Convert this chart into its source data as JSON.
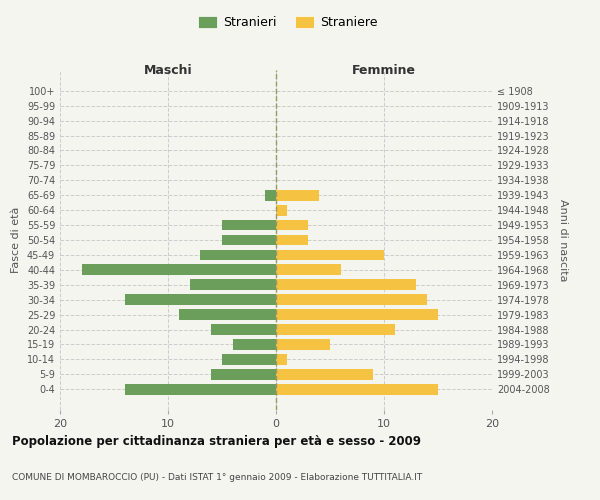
{
  "age_groups": [
    "100+",
    "95-99",
    "90-94",
    "85-89",
    "80-84",
    "75-79",
    "70-74",
    "65-69",
    "60-64",
    "55-59",
    "50-54",
    "45-49",
    "40-44",
    "35-39",
    "30-34",
    "25-29",
    "20-24",
    "15-19",
    "10-14",
    "5-9",
    "0-4"
  ],
  "birth_years": [
    "≤ 1908",
    "1909-1913",
    "1914-1918",
    "1919-1923",
    "1924-1928",
    "1929-1933",
    "1934-1938",
    "1939-1943",
    "1944-1948",
    "1949-1953",
    "1954-1958",
    "1959-1963",
    "1964-1968",
    "1969-1973",
    "1974-1978",
    "1979-1983",
    "1984-1988",
    "1989-1993",
    "1994-1998",
    "1999-2003",
    "2004-2008"
  ],
  "maschi": [
    0,
    0,
    0,
    0,
    0,
    0,
    0,
    1,
    0,
    5,
    5,
    7,
    18,
    8,
    14,
    9,
    6,
    4,
    5,
    6,
    14
  ],
  "femmine": [
    0,
    0,
    0,
    0,
    0,
    0,
    0,
    4,
    1,
    3,
    3,
    10,
    6,
    13,
    14,
    15,
    11,
    5,
    1,
    9,
    15
  ],
  "maschi_color": "#6a9e5a",
  "femmine_color": "#f5c242",
  "bg_color": "#f5f5f0",
  "grid_color": "#cccccc",
  "title": "Popolazione per cittadinanza straniera per età e sesso - 2009",
  "subtitle": "COMUNE DI MOMBAROCCIO (PU) - Dati ISTAT 1° gennaio 2009 - Elaborazione TUTTITALIA.IT",
  "xlabel_left": "Maschi",
  "xlabel_right": "Femmine",
  "ylabel_left": "Fasce di età",
  "ylabel_right": "Anni di nascita",
  "legend_stranieri": "Stranieri",
  "legend_straniere": "Straniere",
  "xlim": 20
}
